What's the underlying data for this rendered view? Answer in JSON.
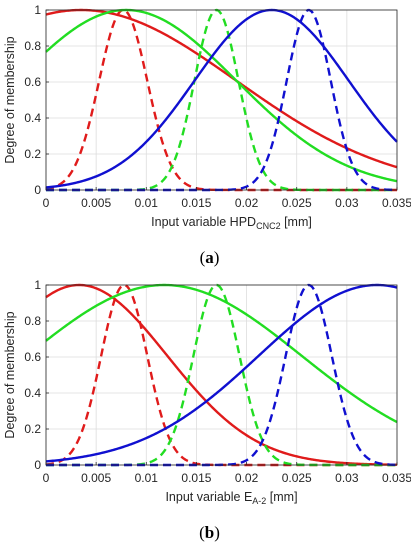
{
  "chart_data": [
    {
      "type": "line",
      "panel_label": "(a)",
      "panel_label_parts": [
        "(",
        "a",
        ")"
      ],
      "xlabel": "Input variable HPD",
      "xlabel_sub": "CNC2",
      "xlabel_unit": " [mm]",
      "ylabel": "Degree of membership",
      "xlim": [
        0,
        0.035
      ],
      "ylim": [
        0,
        1
      ],
      "xticks": [
        "0",
        "0.005",
        "0.01",
        "0.015",
        "0.02",
        "0.025",
        "0.03",
        "0.035"
      ],
      "yticks": [
        "0",
        "0.2",
        "0.4",
        "0.6",
        "0.8",
        "1"
      ],
      "grid": true,
      "series": [
        {
          "color": "#e01b1b",
          "style": "solid",
          "shape": "gaussian",
          "center": 0.0035,
          "sigma": 0.0155
        },
        {
          "color": "#e01b1b",
          "style": "dashed",
          "shape": "gaussian",
          "center": 0.0077,
          "sigma": 0.0024
        },
        {
          "color": "#22dd22",
          "style": "solid",
          "shape": "gaussian",
          "center": 0.008,
          "sigma": 0.011
        },
        {
          "color": "#22dd22",
          "style": "dashed",
          "shape": "gaussian",
          "center": 0.017,
          "sigma": 0.0022
        },
        {
          "color": "#1010d0",
          "style": "solid",
          "shape": "gaussian",
          "center": 0.0225,
          "sigma": 0.0077
        },
        {
          "color": "#1010d0",
          "style": "dashed",
          "shape": "gaussian",
          "center": 0.0262,
          "sigma": 0.0022
        }
      ]
    },
    {
      "type": "line",
      "panel_label": "(b)",
      "panel_label_parts": [
        "(",
        "b",
        ")"
      ],
      "xlabel": "Input variable E",
      "xlabel_sub": "A-2",
      "xlabel_unit": " [mm]",
      "ylabel": "Degree of membership",
      "xlim": [
        0,
        0.035
      ],
      "ylim": [
        0,
        1
      ],
      "xticks": [
        "0",
        "0.005",
        "0.01",
        "0.015",
        "0.02",
        "0.025",
        "0.03",
        "0.035"
      ],
      "yticks": [
        "0",
        "0.2",
        "0.4",
        "0.6",
        "0.8",
        "1"
      ],
      "grid": true,
      "series": [
        {
          "color": "#e01b1b",
          "style": "solid",
          "shape": "gaussian",
          "center": 0.0033,
          "sigma": 0.0088
        },
        {
          "color": "#e01b1b",
          "style": "dashed",
          "shape": "gaussian",
          "center": 0.0078,
          "sigma": 0.0023
        },
        {
          "color": "#22dd22",
          "style": "solid",
          "shape": "gaussian",
          "center": 0.0118,
          "sigma": 0.0137
        },
        {
          "color": "#22dd22",
          "style": "dashed",
          "shape": "gaussian",
          "center": 0.017,
          "sigma": 0.0023
        },
        {
          "color": "#1010d0",
          "style": "solid",
          "shape": "gaussian",
          "center": 0.033,
          "sigma": 0.0118
        },
        {
          "color": "#1010d0",
          "style": "dashed",
          "shape": "gaussian",
          "center": 0.0262,
          "sigma": 0.0023
        }
      ]
    }
  ]
}
